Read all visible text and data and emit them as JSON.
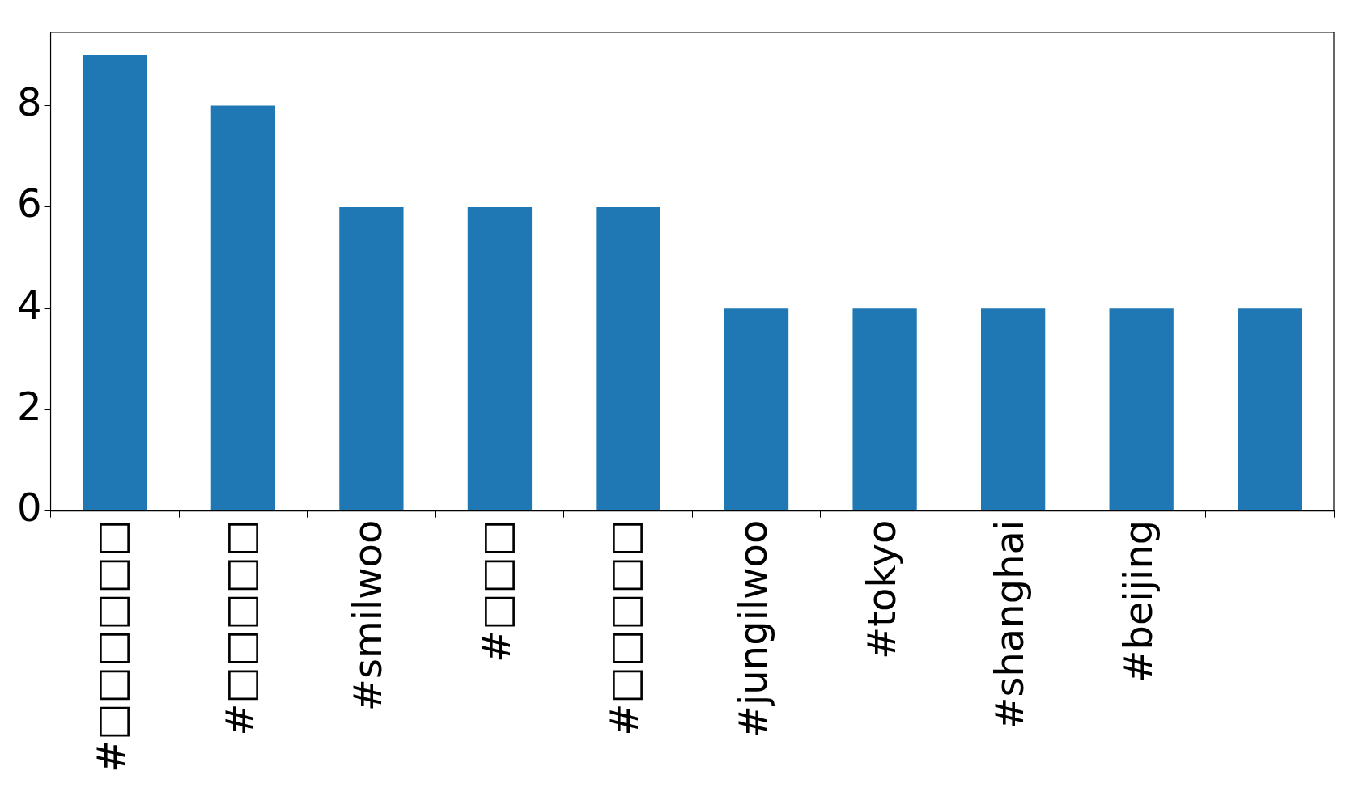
{
  "chart_data": {
    "type": "bar",
    "categories": [
      "#□□□□□□",
      "#□□□□□",
      "#smilwoo",
      "#□□□",
      "#□□□□□",
      "#jungilwoo",
      "#tokyo",
      "#shanghai",
      "#beijing",
      null
    ],
    "values": [
      9,
      8,
      6,
      6,
      6,
      4,
      4,
      4,
      4,
      4
    ],
    "color": "#1f77b4",
    "ylim": [
      0,
      9.45
    ],
    "yticks": [
      0,
      2,
      4,
      6,
      8
    ],
    "legend": false
  }
}
